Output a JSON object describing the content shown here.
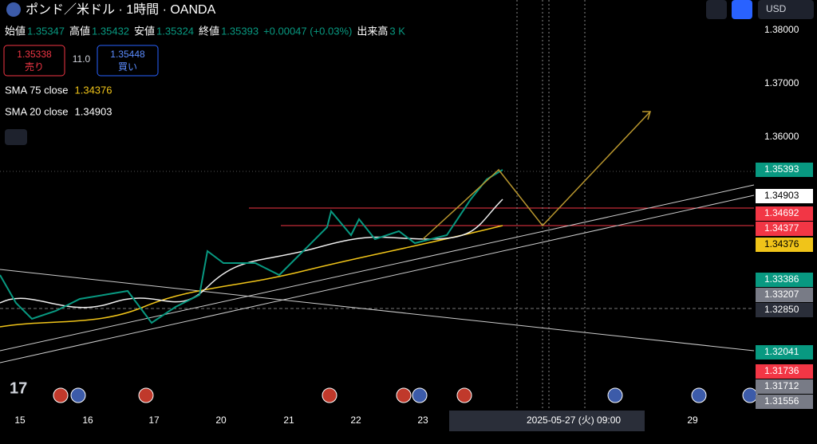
{
  "header": {
    "title": "ポンド／米ドル · 1時間 · OANDA",
    "currency": "USD"
  },
  "ohlc": [
    {
      "label": "始値",
      "value": "1.35347"
    },
    {
      "label": "高値",
      "value": "1.35432"
    },
    {
      "label": "安値",
      "value": "1.35324"
    },
    {
      "label": "終値",
      "value": "1.35393"
    }
  ],
  "change": "+0.00047 (+0.03%)",
  "volume": {
    "label": "出来高",
    "value": "3 K"
  },
  "trade": {
    "sell_price": "1.35338",
    "sell": "売り",
    "spread": "11.0",
    "buy_price": "1.35448",
    "buy": "買い"
  },
  "indicators": [
    {
      "name": "SMA 75 close",
      "value": "1.34376",
      "color": "#f0c419"
    },
    {
      "name": "SMA 20 close",
      "value": "1.34903",
      "color": "#ffffff"
    }
  ],
  "price_scale": [
    "1.38000",
    "1.37000",
    "1.36000"
  ],
  "price_badges": [
    {
      "text": "1.35393",
      "color": "#089981"
    },
    {
      "text": "1.34903",
      "color": "#ffffff"
    },
    {
      "text": "1.34692",
      "color": "#f23645"
    },
    {
      "text": "1.34377",
      "color": "#f23645"
    },
    {
      "text": "1.34376",
      "color": "#f0c419"
    },
    {
      "text": "1.33386",
      "color": "#089981"
    },
    {
      "text": "1.33207",
      "color": "#787b86"
    },
    {
      "text": "1.32850",
      "color": "#2a2e39"
    },
    {
      "text": "1.32041",
      "color": "#089981"
    },
    {
      "text": "1.31736",
      "color": "#f23645"
    },
    {
      "text": "1.31712",
      "color": "#787b86"
    },
    {
      "text": "1.31556",
      "color": "#787b86"
    }
  ],
  "time_scale": [
    "15",
    "16",
    "17",
    "20",
    "21",
    "22",
    "23",
    "29"
  ],
  "crosshair_time": "2025-05-27 (火)   09:00"
}
